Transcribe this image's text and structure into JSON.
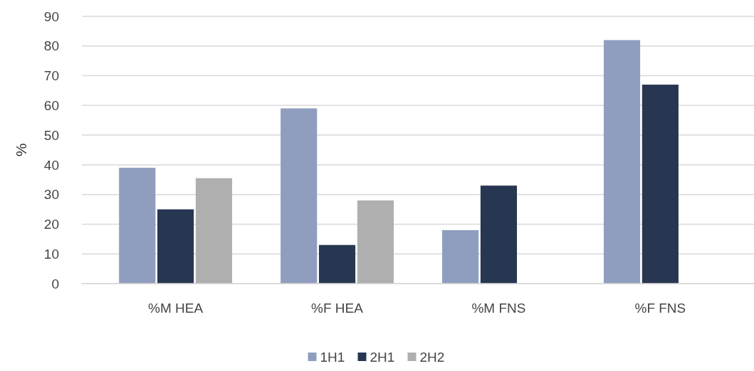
{
  "chart_data": {
    "type": "bar",
    "ylabel": "%",
    "categories": [
      "%M HEA",
      "%F HEA",
      "%M FNS",
      "%F FNS"
    ],
    "series": [
      {
        "name": "1H1",
        "color": "#8f9ebf",
        "values": [
          39,
          59,
          18,
          82
        ]
      },
      {
        "name": "2H1",
        "color": "#283751",
        "values": [
          25,
          13,
          33,
          67
        ]
      },
      {
        "name": "2H2",
        "color": "#afafaf",
        "values": [
          35.5,
          28,
          null,
          null
        ]
      }
    ],
    "ylim": [
      0,
      90
    ],
    "yticks": [
      0,
      10,
      20,
      30,
      40,
      50,
      60,
      70,
      80,
      90
    ],
    "grid": "y",
    "legend": "bottom"
  }
}
